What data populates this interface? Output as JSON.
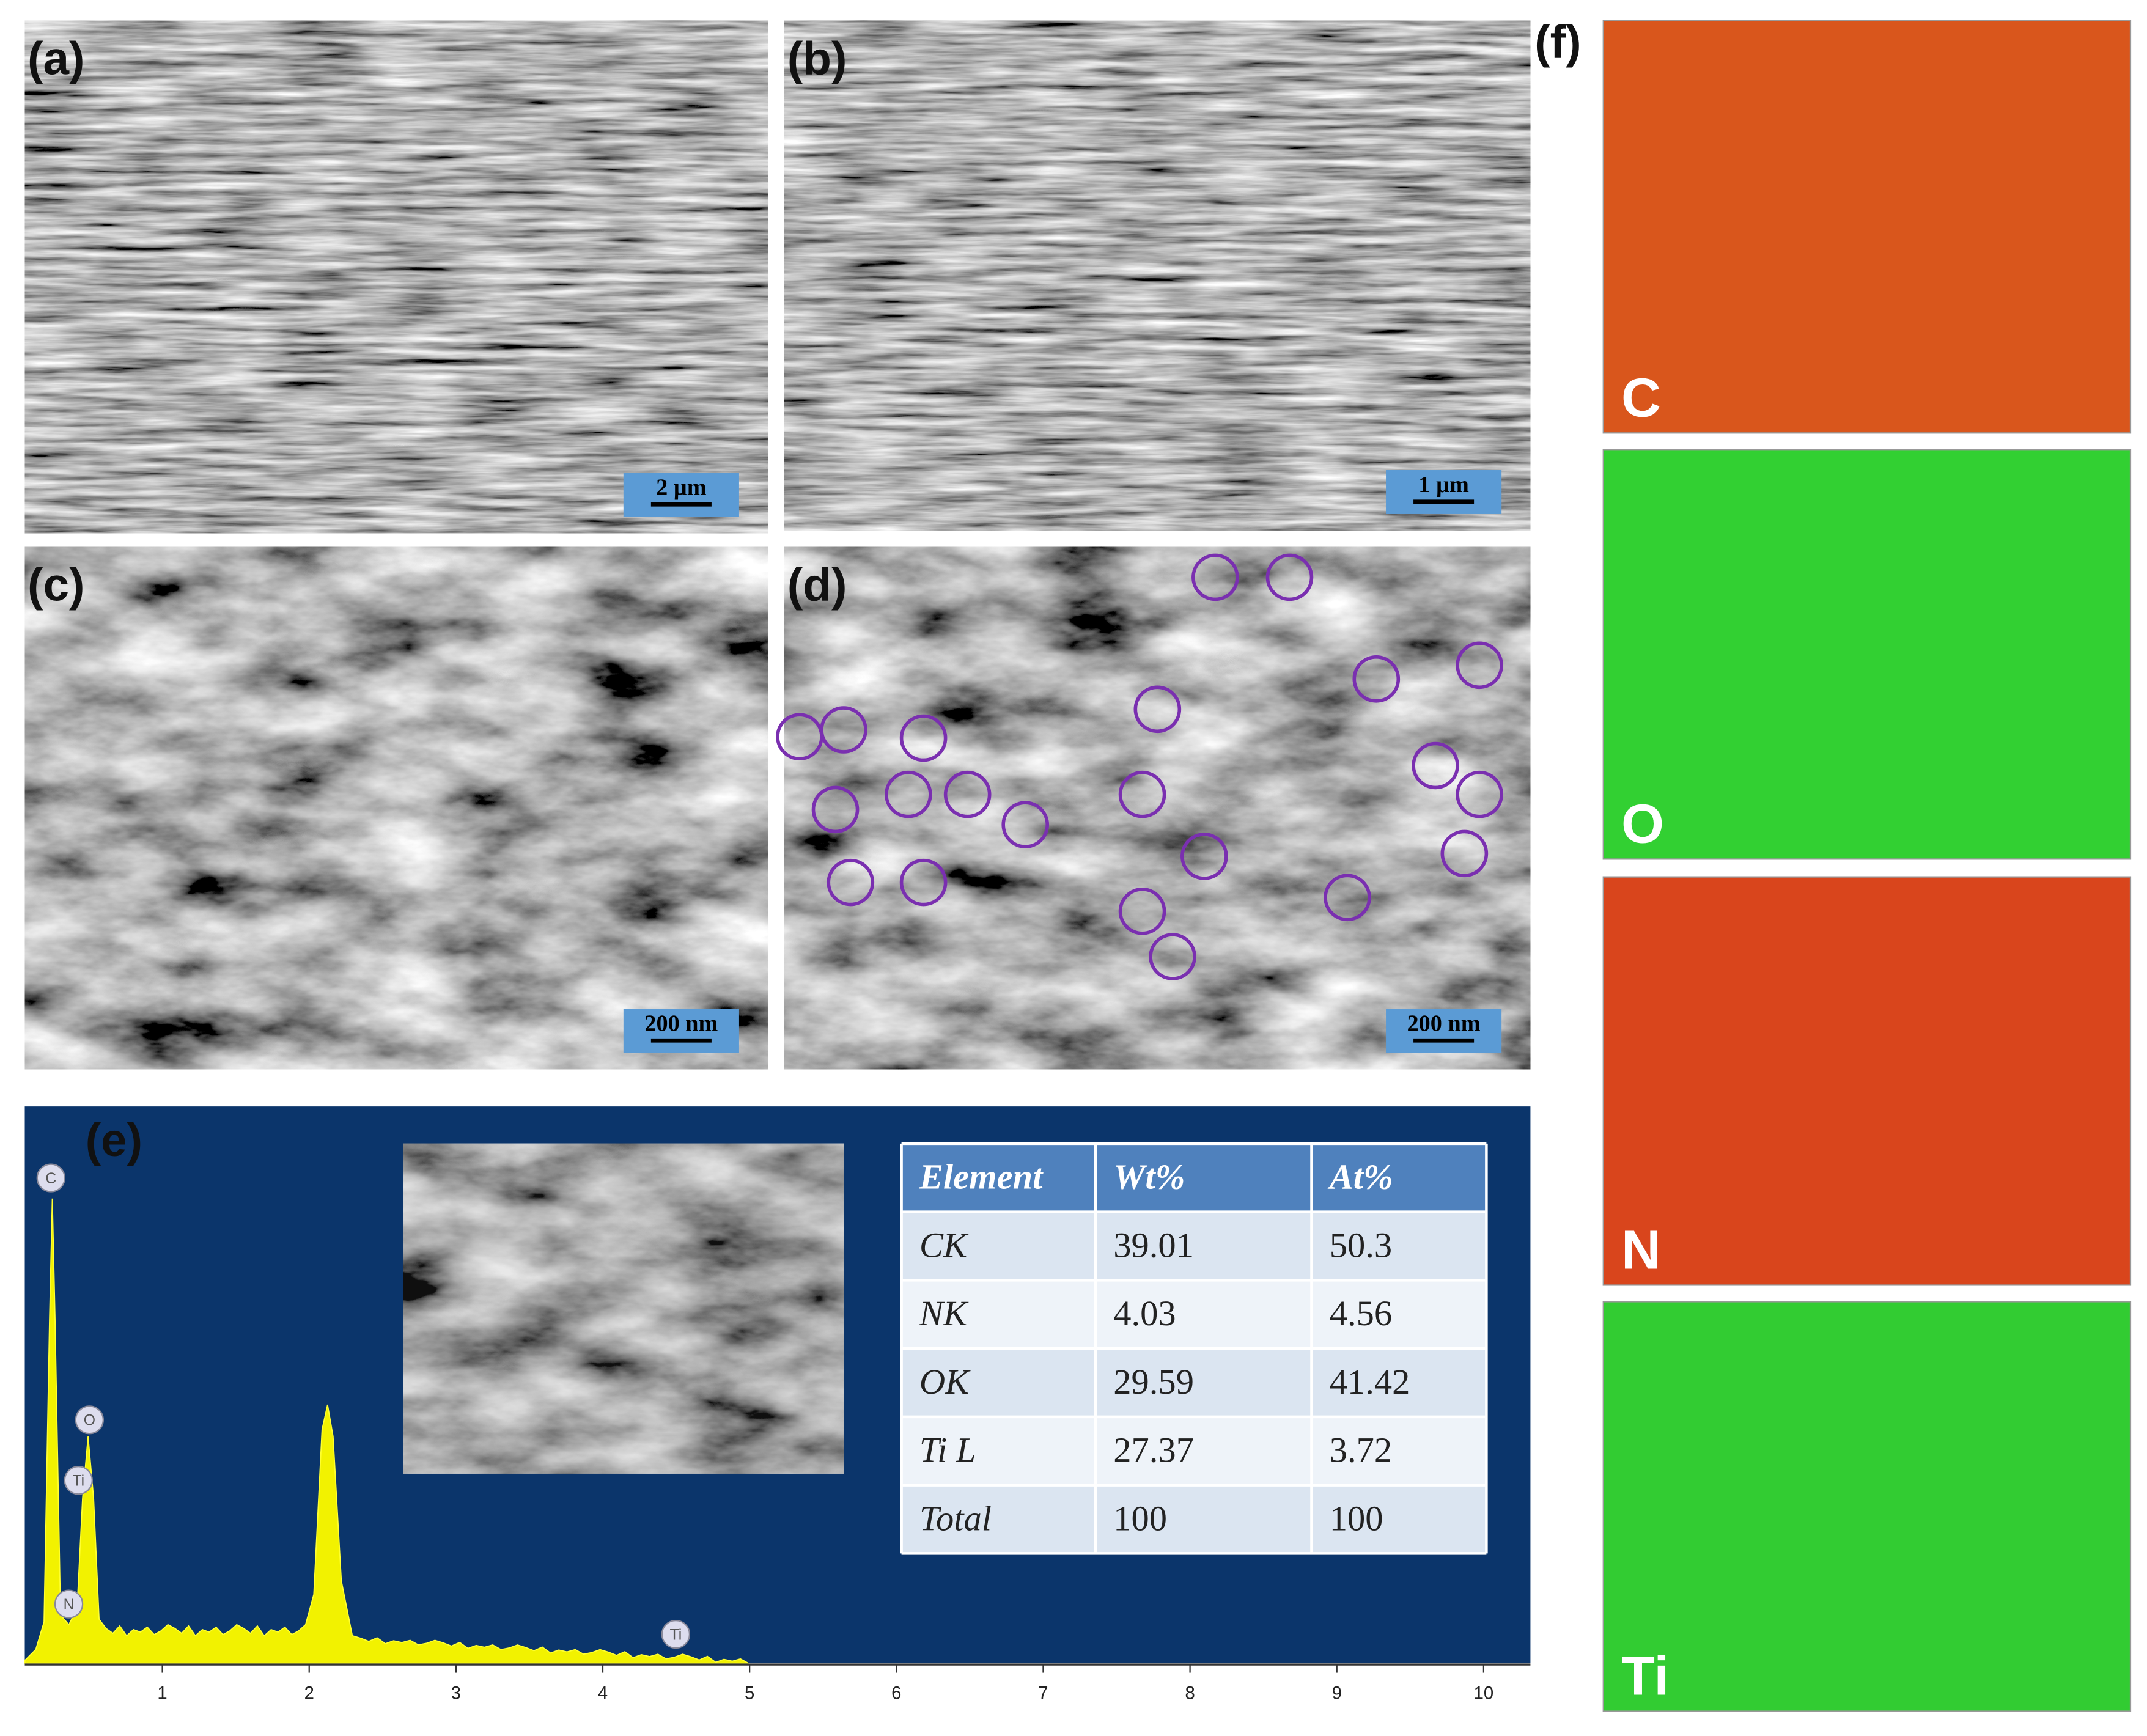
{
  "panels": [
    {
      "label": "(a)",
      "scale_bar": "2 µm"
    },
    {
      "label": "(b)",
      "scale_bar": "1 µm"
    },
    {
      "label": "(c)",
      "scale_bar": "200 nm"
    },
    {
      "label": "(d)",
      "scale_bar": "200 nm"
    }
  ],
  "eds": {
    "label": "(e)",
    "peak_labels": [
      "C",
      "O",
      "Ti",
      "N",
      "Ti"
    ],
    "xticks": [
      1,
      2,
      3,
      4,
      5,
      6,
      7,
      8,
      9,
      10
    ],
    "table": {
      "header": [
        "Element",
        "Wt%",
        "At%"
      ],
      "rows": [
        [
          "CK",
          39.01,
          50.3
        ],
        [
          "NK",
          4.03,
          4.56
        ],
        [
          "OK",
          29.59,
          41.42
        ],
        [
          "Ti L",
          27.37,
          3.72
        ],
        [
          "Total",
          100,
          100
        ]
      ]
    }
  },
  "maps": {
    "label": "(f)",
    "elements": [
      "C",
      "O",
      "N",
      "Ti"
    ]
  }
}
